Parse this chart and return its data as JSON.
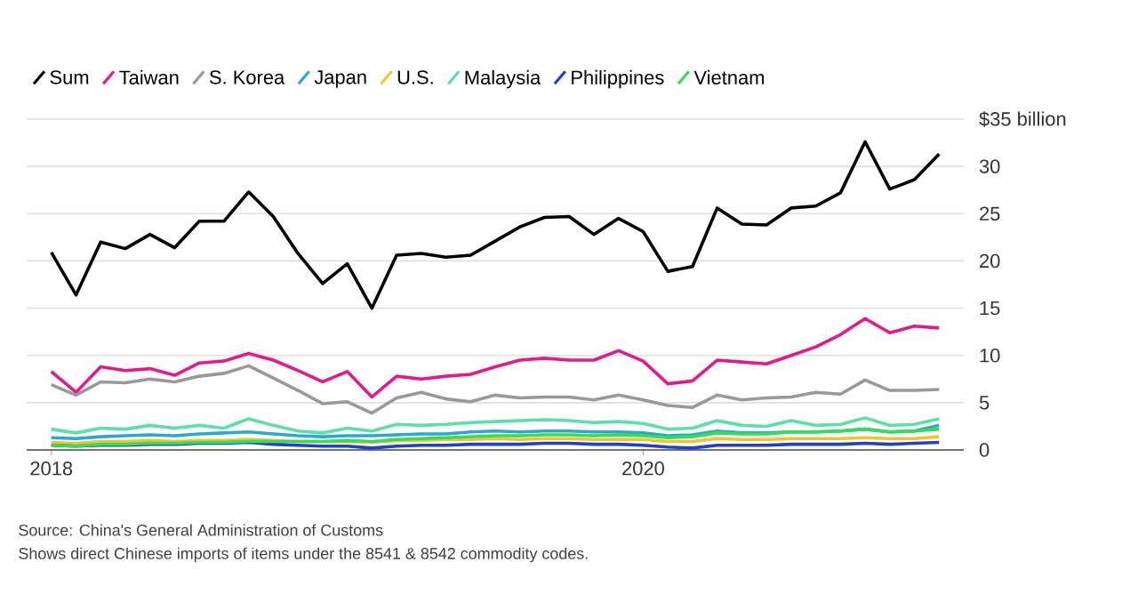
{
  "chart_data": {
    "type": "line",
    "x": [
      "2018-01",
      "2018-02",
      "2018-03",
      "2018-04",
      "2018-05",
      "2018-06",
      "2018-07",
      "2018-08",
      "2018-09",
      "2018-10",
      "2018-11",
      "2018-12",
      "2019-01",
      "2019-02",
      "2019-03",
      "2019-04",
      "2019-05",
      "2019-06",
      "2019-07",
      "2019-08",
      "2019-09",
      "2019-10",
      "2019-11",
      "2019-12",
      "2020-01",
      "2020-02",
      "2020-03",
      "2020-04",
      "2020-05",
      "2020-06",
      "2020-07",
      "2020-08",
      "2020-09",
      "2020-10",
      "2020-11",
      "2020-12",
      "2021-01"
    ],
    "series": [
      {
        "name": "Sum",
        "color": "#000000",
        "values": [
          20.9,
          16.4,
          22,
          21.3,
          22.8,
          21.4,
          24.2,
          24.2,
          27.3,
          24.7,
          20.8,
          17.6,
          19.7,
          15,
          20.6,
          20.8,
          20.4,
          20.6,
          22.1,
          23.6,
          24.6,
          24.7,
          22.8,
          24.5,
          23.1,
          18.9,
          19.4,
          25.6,
          23.9,
          23.8,
          25.6,
          25.8,
          27.2,
          32.6,
          27.6,
          28.6,
          31.3
        ]
      },
      {
        "name": "Taiwan",
        "color": "#e6198c",
        "values": [
          8.3,
          6.1,
          8.8,
          8.4,
          8.6,
          7.9,
          9.2,
          9.4,
          10.2,
          9.5,
          8.4,
          7.2,
          8.3,
          5.6,
          7.8,
          7.5,
          7.8,
          8,
          8.8,
          9.5,
          9.7,
          9.5,
          9.5,
          10.5,
          9.4,
          7,
          7.3,
          9.5,
          9.3,
          9.1,
          10,
          10.9,
          12.2,
          13.9,
          12.4,
          13.1,
          12.9
        ]
      },
      {
        "name": "S. Korea",
        "color": "#999999",
        "values": [
          6.9,
          5.8,
          7.2,
          7.1,
          7.5,
          7.2,
          7.8,
          8.1,
          8.9,
          7.6,
          6.3,
          4.9,
          5.1,
          3.9,
          5.5,
          6.1,
          5.4,
          5.1,
          5.8,
          5.5,
          5.6,
          5.6,
          5.3,
          5.8,
          5.3,
          4.7,
          4.5,
          5.8,
          5.3,
          5.5,
          5.6,
          6.1,
          5.9,
          7.4,
          6.3,
          6.3,
          6.4
        ]
      },
      {
        "name": "Japan",
        "color": "#29a8d6",
        "values": [
          1.3,
          1.2,
          1.4,
          1.5,
          1.6,
          1.5,
          1.7,
          1.8,
          1.9,
          1.7,
          1.5,
          1.4,
          1.5,
          1.5,
          1.6,
          1.7,
          1.7,
          1.9,
          2,
          1.9,
          2,
          2,
          1.9,
          1.9,
          1.8,
          1.5,
          1.6,
          2,
          1.8,
          1.8,
          1.9,
          1.9,
          2,
          2.2,
          1.9,
          2,
          2.6
        ]
      },
      {
        "name": "U.S.",
        "color": "#f2c530",
        "values": [
          0.8,
          0.7,
          0.9,
          0.9,
          1,
          0.9,
          1,
          1,
          1.1,
          1,
          0.9,
          0.9,
          0.9,
          0.8,
          1,
          1,
          1.1,
          1.1,
          1.2,
          1.1,
          1.2,
          1.2,
          1.1,
          1.1,
          1.1,
          0.9,
          0.9,
          1.2,
          1.1,
          1.1,
          1.2,
          1.2,
          1.2,
          1.3,
          1.2,
          1.2,
          1.4
        ]
      },
      {
        "name": "Malaysia",
        "color": "#5ae0a8",
        "values": [
          2.2,
          1.8,
          2.3,
          2.2,
          2.6,
          2.3,
          2.6,
          2.3,
          3.3,
          2.6,
          2,
          1.8,
          2.3,
          2,
          2.7,
          2.6,
          2.7,
          2.9,
          3,
          3.1,
          3.2,
          3.1,
          2.9,
          3,
          2.8,
          2.2,
          2.3,
          3.1,
          2.6,
          2.5,
          3.1,
          2.6,
          2.7,
          3.4,
          2.6,
          2.7,
          3.3
        ]
      },
      {
        "name": "Philippines",
        "color": "#1f3fcc",
        "values": [
          0.5,
          0.4,
          0.5,
          0.5,
          0.6,
          0.6,
          0.7,
          0.7,
          0.8,
          0.6,
          0.5,
          0.4,
          0.4,
          0.2,
          0.4,
          0.5,
          0.5,
          0.6,
          0.6,
          0.6,
          0.7,
          0.7,
          0.6,
          0.6,
          0.5,
          0.3,
          0.2,
          0.5,
          0.5,
          0.5,
          0.6,
          0.6,
          0.6,
          0.7,
          0.6,
          0.7,
          0.8
        ]
      },
      {
        "name": "Vietnam",
        "color": "#33dd55",
        "values": [
          0.5,
          0.4,
          0.6,
          0.6,
          0.7,
          0.7,
          0.8,
          0.8,
          0.9,
          0.9,
          0.9,
          0.9,
          1,
          0.9,
          1.1,
          1.2,
          1.3,
          1.4,
          1.5,
          1.5,
          1.6,
          1.6,
          1.5,
          1.6,
          1.5,
          1.3,
          1.4,
          1.8,
          1.7,
          1.7,
          1.9,
          1.9,
          2,
          2.2,
          1.9,
          2,
          2.2
        ]
      }
    ],
    "xlim": [
      "2017-12",
      "2021-02"
    ],
    "xticks": [
      "2018",
      "2020"
    ],
    "ylim": [
      0,
      35
    ],
    "yticks": [
      0,
      5,
      10,
      15,
      20,
      25,
      30,
      {
        "value": 35,
        "label": "$35 billion"
      }
    ],
    "grid": "y",
    "legend": "top left",
    "marker": "none",
    "line_style": "solid",
    "annotations": [
      "Source: China's General Administration of Customs",
      "Shows direct Chinese imports of items under the 8541 & 8542 commodity codes."
    ]
  }
}
